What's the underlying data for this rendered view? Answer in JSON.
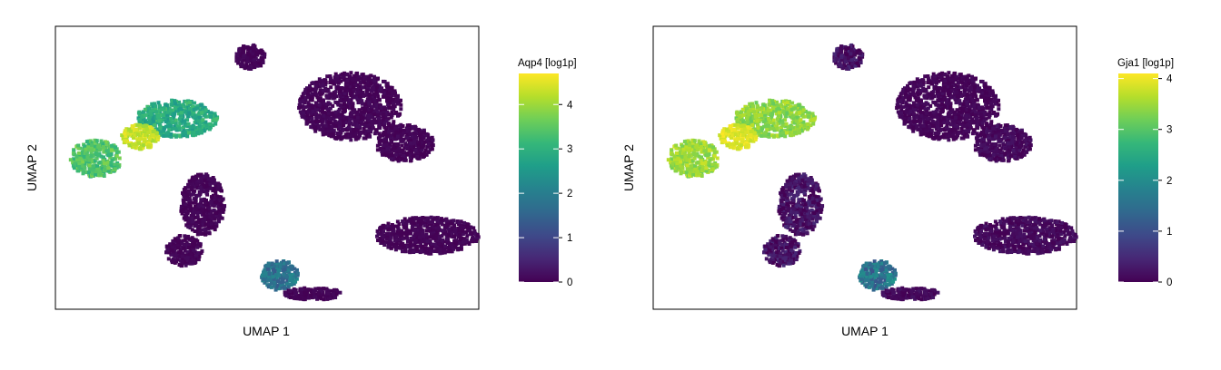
{
  "figure": {
    "panels": [
      {
        "xlabel": "UMAP 1",
        "ylabel": "UMAP 2",
        "colorbar_title": "Aqp4 [log1p]",
        "colorbar_ticks": [
          "0",
          "1",
          "2",
          "3",
          "4"
        ],
        "colorbar_max": 4.7
      },
      {
        "xlabel": "UMAP 1",
        "ylabel": "UMAP 2",
        "colorbar_title": "Gja1 [log1p]",
        "colorbar_ticks": [
          "0",
          "1",
          "2",
          "3",
          "4"
        ],
        "colorbar_max": 4.1
      }
    ]
  },
  "chart_data": [
    {
      "type": "hexbin-scatter",
      "title": "",
      "xlabel": "UMAP 1",
      "ylabel": "UMAP 2",
      "color_variable": "Aqp4 [log1p]",
      "colormap": "viridis",
      "color_range": [
        0,
        4.7
      ],
      "axes_ticks": false,
      "clusters": [
        {
          "cx": 0.96,
          "cy": 0.45,
          "rx": 0.07,
          "ry": 0.06,
          "value": 3.4,
          "var": 0.4
        },
        {
          "cx": 1.18,
          "cy": 0.58,
          "rx": 0.11,
          "ry": 0.06,
          "value": 2.9,
          "var": 0.4
        },
        {
          "cx": 1.08,
          "cy": 0.52,
          "rx": 0.05,
          "ry": 0.04,
          "value": 4.3,
          "var": 0.3
        },
        {
          "cx": 1.25,
          "cy": 0.3,
          "rx": 0.06,
          "ry": 0.1,
          "value": 0.05,
          "var": 0.1
        },
        {
          "cx": 1.2,
          "cy": 0.15,
          "rx": 0.05,
          "ry": 0.05,
          "value": 0.05,
          "var": 0.1
        },
        {
          "cx": 1.38,
          "cy": 0.78,
          "rx": 0.04,
          "ry": 0.04,
          "value": 0.05,
          "var": 0.1
        },
        {
          "cx": 1.65,
          "cy": 0.62,
          "rx": 0.14,
          "ry": 0.11,
          "value": 0.05,
          "var": 0.1
        },
        {
          "cx": 1.8,
          "cy": 0.5,
          "rx": 0.08,
          "ry": 0.06,
          "value": 0.05,
          "var": 0.1
        },
        {
          "cx": 1.86,
          "cy": 0.2,
          "rx": 0.14,
          "ry": 0.06,
          "value": 0.05,
          "var": 0.1
        },
        {
          "cx": 1.46,
          "cy": 0.07,
          "rx": 0.05,
          "ry": 0.05,
          "value": 1.8,
          "var": 0.5
        },
        {
          "cx": 1.55,
          "cy": 0.01,
          "rx": 0.08,
          "ry": 0.02,
          "value": 0.05,
          "var": 0.1
        }
      ]
    },
    {
      "type": "hexbin-scatter",
      "title": "",
      "xlabel": "UMAP 1",
      "ylabel": "UMAP 2",
      "color_variable": "Gja1 [log1p]",
      "colormap": "viridis",
      "color_range": [
        0,
        4.1
      ],
      "axes_ticks": false,
      "clusters": [
        {
          "cx": 0.96,
          "cy": 0.45,
          "rx": 0.07,
          "ry": 0.06,
          "value": 3.5,
          "var": 0.3
        },
        {
          "cx": 1.18,
          "cy": 0.58,
          "rx": 0.11,
          "ry": 0.06,
          "value": 3.4,
          "var": 0.3
        },
        {
          "cx": 1.08,
          "cy": 0.52,
          "rx": 0.05,
          "ry": 0.04,
          "value": 3.9,
          "var": 0.2
        },
        {
          "cx": 1.25,
          "cy": 0.3,
          "rx": 0.06,
          "ry": 0.1,
          "value": 0.2,
          "var": 0.3
        },
        {
          "cx": 1.2,
          "cy": 0.15,
          "rx": 0.05,
          "ry": 0.05,
          "value": 0.2,
          "var": 0.3
        },
        {
          "cx": 1.38,
          "cy": 0.78,
          "rx": 0.04,
          "ry": 0.04,
          "value": 0.2,
          "var": 0.3
        },
        {
          "cx": 1.65,
          "cy": 0.62,
          "rx": 0.14,
          "ry": 0.11,
          "value": 0.05,
          "var": 0.1
        },
        {
          "cx": 1.8,
          "cy": 0.5,
          "rx": 0.08,
          "ry": 0.06,
          "value": 0.1,
          "var": 0.15
        },
        {
          "cx": 1.86,
          "cy": 0.2,
          "rx": 0.14,
          "ry": 0.06,
          "value": 0.1,
          "var": 0.15
        },
        {
          "cx": 1.46,
          "cy": 0.07,
          "rx": 0.05,
          "ry": 0.05,
          "value": 1.6,
          "var": 0.6
        },
        {
          "cx": 1.55,
          "cy": 0.01,
          "rx": 0.08,
          "ry": 0.02,
          "value": 0.1,
          "var": 0.15
        }
      ]
    }
  ]
}
